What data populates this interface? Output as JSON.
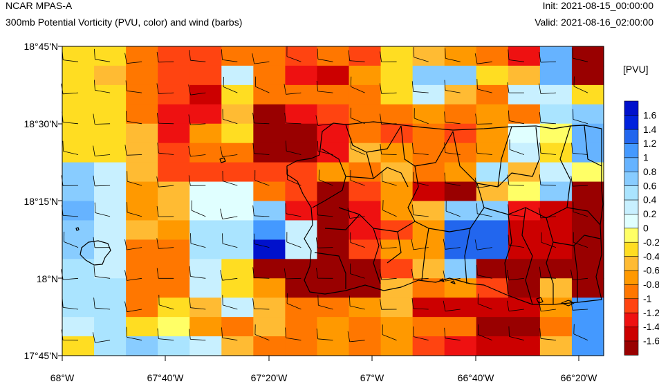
{
  "header": {
    "model_name": "NCAR MPAS-A",
    "field_title": "300mb Potential Vorticity (PVU, color) and wind (barbs)",
    "init_time": "Init: 2021-08-15_00:00:00",
    "valid_time": "Valid: 2021-08-16_02:00:00"
  },
  "map": {
    "lat_labels": [
      "18°45'N",
      "18°30'N",
      "18°15'N",
      "18°N",
      "17°45'N"
    ],
    "lon_labels": [
      "68°W",
      "67°40'W",
      "67°20'W",
      "67°W",
      "66°40'W",
      "66°20'W"
    ],
    "lon_range": [
      -68.0,
      -66.25
    ],
    "lat_range": [
      17.75,
      18.75
    ],
    "colors": {
      "coastline": "#000000",
      "barb": "#000000"
    }
  },
  "colorbar": {
    "unit_label": "[PVU]",
    "levels": [
      "1.6",
      "1.4",
      "1.2",
      "1",
      "0.8",
      "0.6",
      "0.4",
      "0.2",
      "0",
      "-0.2",
      "-0.4",
      "-0.6",
      "-0.8",
      "-1",
      "-1.2",
      "-1.4",
      "-1.6"
    ],
    "bin_colors": [
      "#990000",
      "#cc0000",
      "#ee1111",
      "#ff4411",
      "#ff7700",
      "#ff9900",
      "#ffbb33",
      "#ffdd22",
      "#ffff66",
      "#e0ffff",
      "#c8f0ff",
      "#aae4ff",
      "#88ccff",
      "#66b3ff",
      "#4499ff",
      "#2266ee",
      "#0022dd",
      "#0011cc"
    ]
  },
  "chart_data": {
    "type": "heatmap",
    "title": "300mb Potential Vorticity (PVU, color) and wind (barbs)",
    "xlabel": "",
    "ylabel": "",
    "x_range": [
      -68.0,
      -66.25
    ],
    "y_range": [
      17.75,
      18.75
    ],
    "grid_note": "PV bin index per cell (0 = <-1.6 PVU ... 17 = >1.6 PVU), rows north to south",
    "grid": [
      [
        7,
        7,
        4,
        3,
        3,
        4,
        4,
        3,
        4,
        3,
        7,
        6,
        5,
        4,
        2,
        13,
        0
      ],
      [
        7,
        6,
        4,
        3,
        3,
        10,
        4,
        2,
        1,
        5,
        7,
        12,
        12,
        7,
        6,
        13,
        0
      ],
      [
        7,
        7,
        4,
        3,
        1,
        7,
        4,
        4,
        4,
        4,
        7,
        10,
        6,
        4,
        10,
        10,
        7
      ],
      [
        7,
        7,
        4,
        2,
        2,
        6,
        0,
        2,
        3,
        4,
        4,
        5,
        4,
        5,
        4,
        11,
        12
      ],
      [
        7,
        7,
        6,
        2,
        5,
        7,
        0,
        0,
        2,
        4,
        3,
        4,
        3,
        5,
        9,
        8,
        13
      ],
      [
        7,
        7,
        6,
        3,
        4,
        4,
        0,
        0,
        2,
        6,
        5,
        4,
        4,
        5,
        10,
        7,
        13
      ],
      [
        12,
        10,
        6,
        3,
        3,
        3,
        3,
        3,
        5,
        4,
        6,
        4,
        5,
        11,
        6,
        10,
        8
      ],
      [
        12,
        10,
        5,
        6,
        9,
        9,
        4,
        3,
        0,
        3,
        5,
        1,
        0,
        6,
        8,
        12,
        0
      ],
      [
        13,
        10,
        5,
        6,
        9,
        9,
        12,
        2,
        0,
        2,
        5,
        6,
        12,
        12,
        2,
        1,
        0
      ],
      [
        12,
        10,
        6,
        5,
        11,
        11,
        14,
        10,
        0,
        2,
        3,
        5,
        15,
        15,
        1,
        1,
        0
      ],
      [
        12,
        10,
        4,
        4,
        11,
        11,
        17,
        10,
        0,
        3,
        5,
        5,
        15,
        15,
        1,
        1,
        0
      ],
      [
        11,
        10,
        4,
        4,
        10,
        7,
        0,
        0,
        0,
        0,
        3,
        6,
        12,
        0,
        0,
        0,
        0
      ],
      [
        11,
        11,
        4,
        4,
        10,
        7,
        5,
        0,
        0,
        0,
        6,
        4,
        5,
        3,
        0,
        6,
        0
      ],
      [
        11,
        11,
        4,
        7,
        6,
        10,
        6,
        4,
        4,
        5,
        6,
        1,
        1,
        1,
        1,
        5,
        14
      ],
      [
        10,
        11,
        7,
        8,
        5,
        4,
        6,
        4,
        5,
        4,
        5,
        4,
        4,
        0,
        0,
        4,
        14
      ],
      [
        7,
        11,
        12,
        11,
        10,
        6,
        4,
        4,
        5,
        4,
        5,
        3,
        2,
        1,
        1,
        6,
        14
      ]
    ]
  }
}
